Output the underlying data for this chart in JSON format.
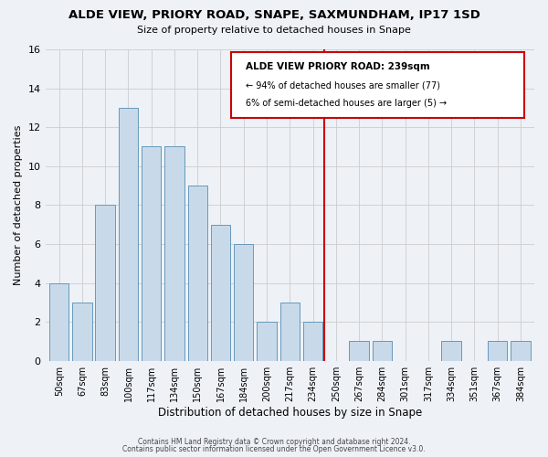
{
  "title": "ALDE VIEW, PRIORY ROAD, SNAPE, SAXMUNDHAM, IP17 1SD",
  "subtitle": "Size of property relative to detached houses in Snape",
  "xlabel": "Distribution of detached houses by size in Snape",
  "ylabel": "Number of detached properties",
  "bar_labels": [
    "50sqm",
    "67sqm",
    "83sqm",
    "100sqm",
    "117sqm",
    "134sqm",
    "150sqm",
    "167sqm",
    "184sqm",
    "200sqm",
    "217sqm",
    "234sqm",
    "250sqm",
    "267sqm",
    "284sqm",
    "301sqm",
    "317sqm",
    "334sqm",
    "351sqm",
    "367sqm",
    "384sqm"
  ],
  "bar_values": [
    4,
    3,
    8,
    13,
    11,
    11,
    9,
    7,
    6,
    2,
    3,
    2,
    0,
    1,
    1,
    0,
    0,
    1,
    0,
    1,
    1
  ],
  "bar_color": "#c8daea",
  "bar_edge_color": "#6699bb",
  "vline_pos": 11.5,
  "vline_color": "#cc0000",
  "annotation_title": "ALDE VIEW PRIORY ROAD: 239sqm",
  "annotation_line1": "← 94% of detached houses are smaller (77)",
  "annotation_line2": "6% of semi-detached houses are larger (5) →",
  "ylim": [
    0,
    16
  ],
  "yticks": [
    0,
    2,
    4,
    6,
    8,
    10,
    12,
    14,
    16
  ],
  "footer1": "Contains HM Land Registry data © Crown copyright and database right 2024.",
  "footer2": "Contains public sector information licensed under the Open Government Licence v3.0.",
  "grid_color": "#cccccc",
  "background_color": "#eef2f7"
}
